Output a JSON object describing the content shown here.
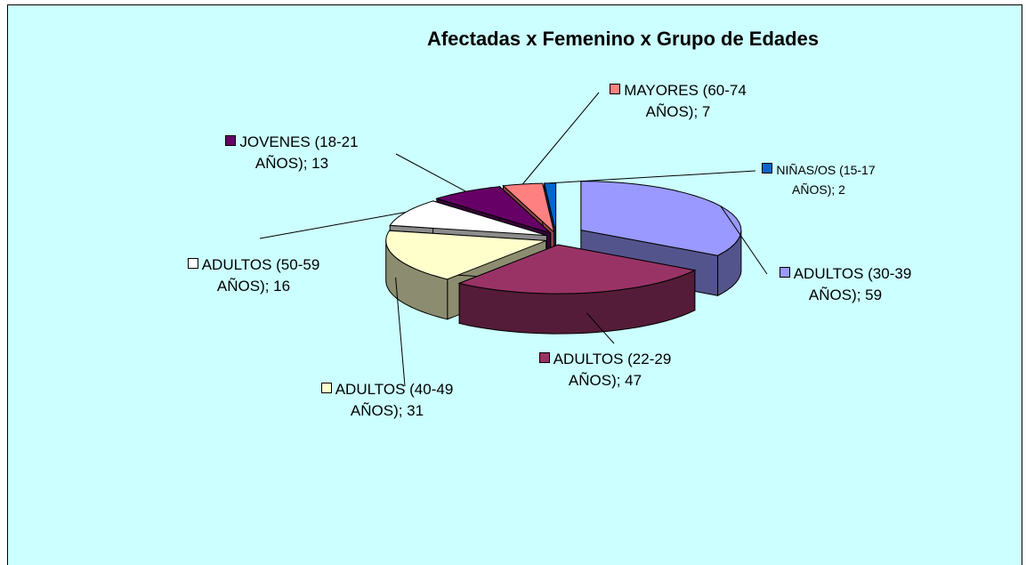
{
  "chart_data": {
    "type": "pie3d",
    "title": "Afectadas x Femenino x Grupo de Edades",
    "categories": [
      "ADULTOS (30-39 AÑOS)",
      "ADULTOS (22-29 AÑOS)",
      "ADULTOS (40-49 AÑOS)",
      "ADULTOS (50-59 AÑOS)",
      "JOVENES (18-21 AÑOS)",
      "MAYORES (60-74 AÑOS)",
      "NIÑAS/OS (15-17 AÑOS)"
    ],
    "values": [
      59,
      47,
      31,
      16,
      13,
      7,
      2
    ],
    "value_labels": [
      "ADULTOS (30-39 AÑOS); 59",
      "ADULTOS (22-29 AÑOS); 47",
      "ADULTOS (40-49 AÑOS); 31",
      "ADULTOS (50-59 AÑOS); 16",
      "JOVENES (18-21 AÑOS); 13",
      "MAYORES (60-74 AÑOS); 7",
      "NIÑAS/OS (15-17 AÑOS); 2"
    ],
    "colors": [
      "#9999ff",
      "#993366",
      "#ffffcc",
      "#ffffff",
      "#660066",
      "#ff8080",
      "#0066cc"
    ]
  }
}
